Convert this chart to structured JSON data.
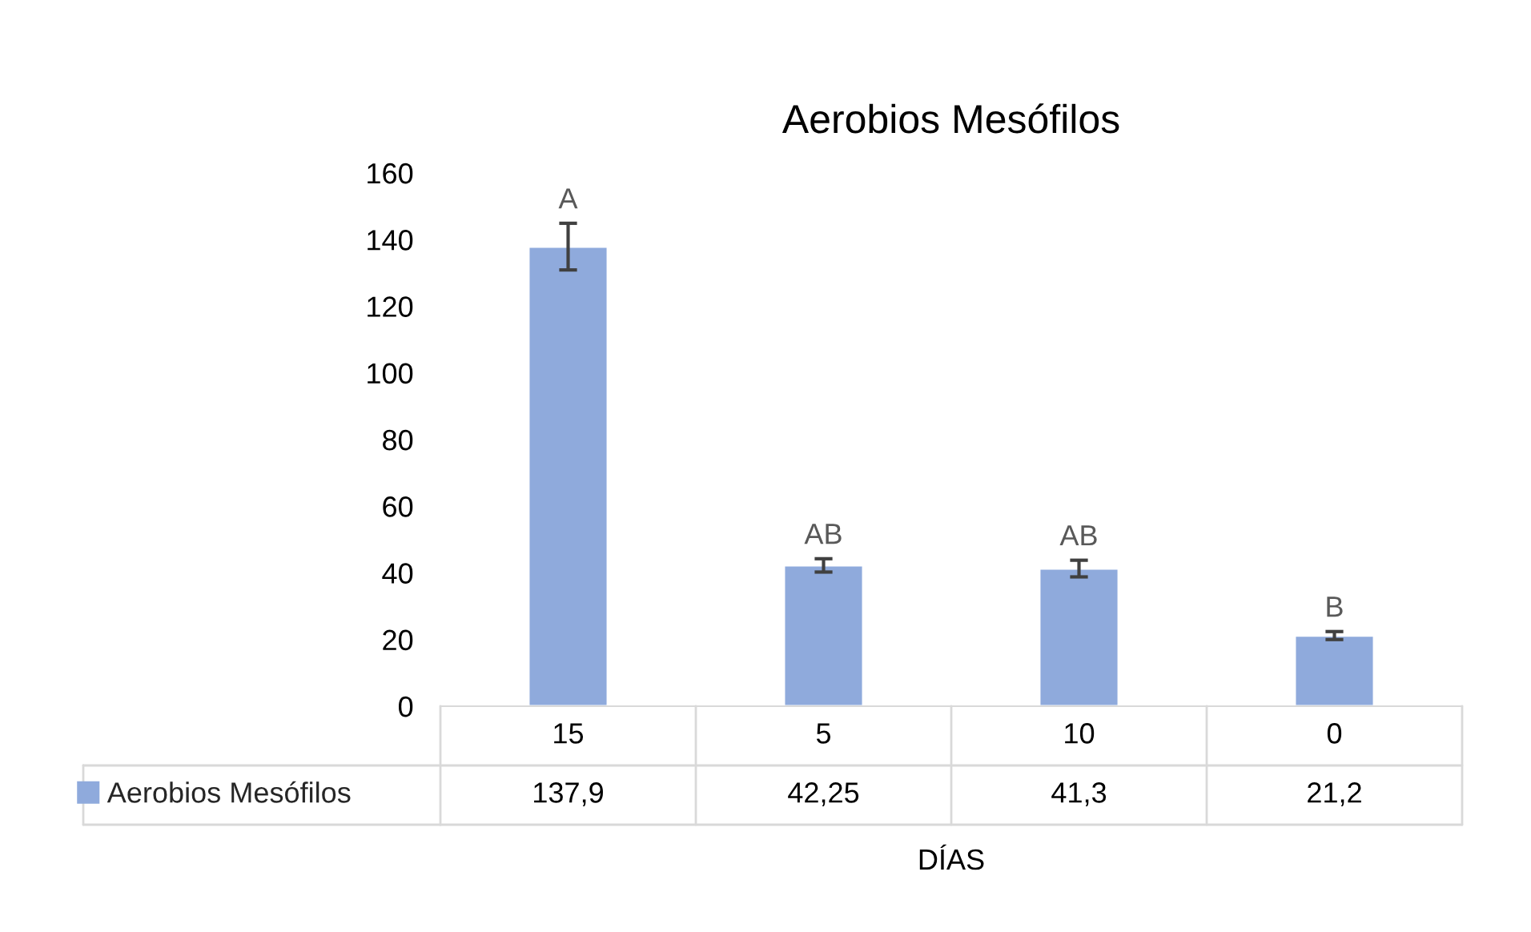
{
  "chart_data": {
    "type": "bar",
    "title": "Aerobios Mesófilos",
    "xlabel": "DÍAS",
    "categories": [
      "15",
      "5",
      "10",
      "0"
    ],
    "series": [
      {
        "name": "Aerobios Mesófilos",
        "color": "#8faadc",
        "values": [
          137.9,
          42.25,
          41.3,
          21.2
        ],
        "errors": [
          7,
          2,
          2.5,
          1.2
        ],
        "value_labels": [
          "137,9",
          "42,25",
          "41,3",
          "21,2"
        ]
      }
    ],
    "annotations": [
      "A",
      "AB",
      "AB",
      "B"
    ],
    "ylim": [
      0,
      160
    ],
    "yticks": [
      0,
      20,
      40,
      60,
      80,
      100,
      120,
      140,
      160
    ],
    "grid": false,
    "legend": "bottom"
  }
}
